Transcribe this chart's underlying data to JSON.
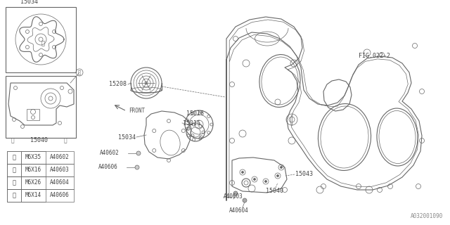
{
  "bg_color": "#ffffff",
  "line_color": "#666666",
  "lw_thin": 0.5,
  "lw_med": 0.8,
  "lw_thick": 1.2,
  "fs_label": 6.0,
  "fs_small": 5.5,
  "watermark": "A032001090",
  "table_data": [
    [
      "①",
      "M6X35",
      "A40602"
    ],
    [
      "②",
      "M6X16",
      "A40603"
    ],
    [
      "③",
      "M6X26",
      "A40604"
    ],
    [
      "④",
      "M6X14",
      "A40606"
    ]
  ]
}
